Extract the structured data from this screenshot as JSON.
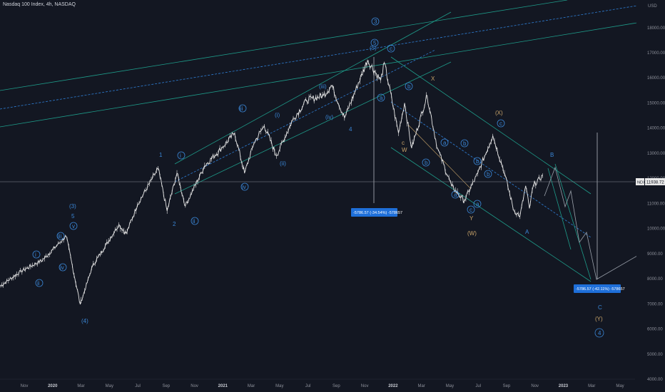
{
  "title": "Nasdaq 100 Index, 4h, NASDAQ",
  "colors": {
    "background": "#131722",
    "price": "#e6e6e6",
    "channel": "#1e9c8a",
    "dashed": "#2f7fd6",
    "wave_blue": "#3a86d6",
    "wave_orange": "#c9a46a",
    "box_bg": "#1e6fd9",
    "price_line": "#8a8d96"
  },
  "chart_data": {
    "type": "line",
    "title": "Nasdaq 100 Index, 4h, NASDAQ",
    "currency": "USD",
    "ylim": [
      4000,
      19100
    ],
    "y_ticks": [
      4000,
      5000,
      6000,
      7000,
      8000,
      9000,
      10000,
      11000,
      12000,
      13000,
      14000,
      15000,
      16000,
      17000,
      18000
    ],
    "y_tick_labels": [
      "4000.00",
      "5000.00",
      "6000.00",
      "7000.00",
      "8000.00",
      "9000.00",
      "10000.00",
      "11000.00",
      "12000.00",
      "13000.00",
      "14000.00",
      "15000.00",
      "16000.00",
      "17000.00",
      "18000.00"
    ],
    "x_ticks": [
      "Nov",
      "2020",
      "Mar",
      "May",
      "Jul",
      "Sep",
      "Nov",
      "2021",
      "Mar",
      "May",
      "Jul",
      "Sep",
      "Nov",
      "2022",
      "Mar",
      "May",
      "Jul",
      "Sep",
      "Nov",
      "2023",
      "Mar",
      "May"
    ],
    "x_range": [
      "2019-10-01",
      "2023-06-15"
    ],
    "current_price": {
      "label": "NDX",
      "value": "11938.72"
    },
    "series": [
      {
        "date": [
          "2019-10-01",
          "2019-11-15",
          "2019-12-31",
          "2020-02-19",
          "2020-03-20",
          "2020-04-15",
          "2020-06-10",
          "2020-06-26",
          "2020-07-20",
          "2020-09-02",
          "2020-09-21",
          "2020-10-12",
          "2020-10-30",
          "2020-12-10",
          "2021-01-15",
          "2021-02-12",
          "2021-03-05",
          "2021-03-25",
          "2021-04-16",
          "2021-05-12",
          "2021-06-15",
          "2021-07-15",
          "2021-08-20",
          "2021-09-07",
          "2021-10-04",
          "2021-11-22",
          "2021-12-20",
          "2021-12-28",
          "2022-01-27",
          "2022-02-09",
          "2022-02-24",
          "2022-03-29",
          "2022-04-20",
          "2022-05-20",
          "2022-06-16",
          "2022-07-15",
          "2022-08-16",
          "2022-09-10",
          "2022-09-30",
          "2022-10-13",
          "2022-10-25",
          "2022-11-02",
          "2022-11-10",
          "2022-11-30"
        ],
        "y": [
          7700,
          8300,
          8750,
          9700,
          6980,
          8500,
          10150,
          9800,
          10950,
          12400,
          10700,
          12200,
          10900,
          12500,
          13200,
          13800,
          12200,
          13400,
          14100,
          12900,
          14300,
          15100,
          15300,
          15700,
          14400,
          16700,
          15900,
          16600,
          13800,
          15000,
          13200,
          15300,
          13200,
          11700,
          11100,
          12200,
          13700,
          12200,
          10700,
          10500,
          11700,
          10800,
          11700,
          12100
        ]
      }
    ]
  },
  "annotations": {
    "boxes": [
      {
        "text": "-5786.57 (-34.54%) -578657"
      },
      {
        "text": "-5786.57 (-42.11%) -578657"
      }
    ],
    "waves_blue": [
      "i",
      "ii",
      "iii",
      "iv",
      "v",
      "(3)",
      "5",
      "(4)",
      "1",
      "2",
      "i",
      "ii",
      "iii",
      "iv",
      "(i)",
      "(ii)",
      "(iii)",
      "(iv)",
      "4",
      "3",
      "5",
      "c",
      "b",
      "a",
      "b",
      "a",
      "b",
      "c",
      "a",
      "b",
      "c",
      "a",
      "b",
      "B",
      "A",
      "C",
      "4",
      "(5)"
    ],
    "waves_orange": [
      "W",
      "X",
      "(X)",
      "c",
      "(W)",
      "(Y)",
      "Y"
    ]
  },
  "labels": {
    "currency": "USD",
    "price_tag_name": "NDX",
    "price_tag_value": "11938.72"
  }
}
